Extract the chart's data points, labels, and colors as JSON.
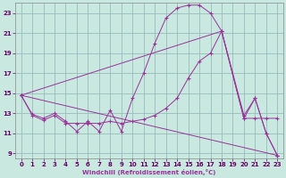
{
  "background_color": "#c8e8e0",
  "grid_color": "#99bbbb",
  "line_color": "#993399",
  "xlabel": "Windchill (Refroidissement éolien,°C)",
  "xlim": [
    -0.5,
    23.5
  ],
  "ylim": [
    8.5,
    24.0
  ],
  "yticks": [
    9,
    11,
    13,
    15,
    17,
    19,
    21,
    23
  ],
  "xticks": [
    0,
    1,
    2,
    3,
    4,
    5,
    6,
    7,
    8,
    9,
    10,
    11,
    12,
    13,
    14,
    15,
    16,
    17,
    18,
    19,
    20,
    21,
    22,
    23
  ],
  "series": [
    {
      "x": [
        0,
        1,
        2,
        3,
        4,
        5,
        6,
        7,
        8,
        9,
        10,
        11,
        12,
        13,
        14,
        15,
        16,
        17,
        18,
        20,
        21,
        22,
        23
      ],
      "y": [
        14.8,
        12.9,
        12.5,
        13.0,
        12.2,
        11.2,
        12.2,
        11.2,
        13.3,
        11.2,
        14.5,
        17.0,
        20.0,
        22.5,
        23.5,
        23.8,
        23.8,
        23.0,
        21.2,
        12.8,
        14.5,
        11.0,
        8.8
      ]
    },
    {
      "x": [
        0,
        1,
        2,
        3,
        4,
        5,
        6,
        7,
        8,
        9,
        10,
        11,
        12,
        13,
        14,
        15,
        16,
        17,
        18,
        20,
        21,
        22,
        23
      ],
      "y": [
        14.8,
        12.8,
        12.3,
        12.8,
        12.0,
        12.0,
        12.0,
        12.0,
        12.2,
        12.0,
        12.2,
        12.4,
        12.8,
        13.5,
        14.5,
        16.5,
        18.2,
        19.0,
        21.2,
        12.5,
        12.5,
        12.5,
        12.5
      ]
    },
    {
      "x": [
        0,
        23
      ],
      "y": [
        14.8,
        8.8
      ]
    },
    {
      "x": [
        0,
        18,
        20,
        21,
        22,
        23
      ],
      "y": [
        14.8,
        21.2,
        12.5,
        14.5,
        11.0,
        8.8
      ]
    }
  ]
}
